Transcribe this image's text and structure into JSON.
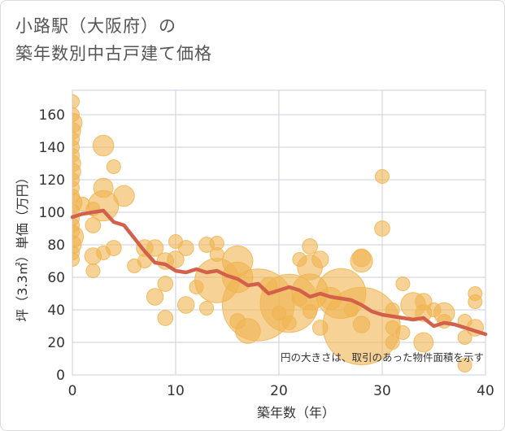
{
  "chart_data": {
    "type": "scatter",
    "title_lines": [
      "小路駅（大阪府）の",
      "築年数別中古戸建て価格"
    ],
    "xlabel": "築年数（年）",
    "ylabel": "坪（3.3㎡）単価（万円）",
    "xlim": [
      0,
      40
    ],
    "ylim": [
      0,
      175
    ],
    "xticks": [
      "0",
      "10",
      "20",
      "30",
      "40"
    ],
    "yticks": [
      "0",
      "20",
      "40",
      "60",
      "80",
      "100",
      "120",
      "140",
      "160"
    ],
    "grid": true,
    "annotation": "円の大きさは、取引のあった物件面積を示す",
    "colors": {
      "bubble": "#f0b450",
      "line": "#d2604a",
      "grid": "#c8d2dc"
    },
    "bubbles": [
      {
        "x": 0,
        "y": 168,
        "s": 1
      },
      {
        "x": 0,
        "y": 160,
        "s": 1
      },
      {
        "x": 0,
        "y": 155,
        "s": 1.4
      },
      {
        "x": 0,
        "y": 150,
        "s": 1.2
      },
      {
        "x": 0,
        "y": 145,
        "s": 1
      },
      {
        "x": 0,
        "y": 140,
        "s": 1
      },
      {
        "x": 0,
        "y": 135,
        "s": 1
      },
      {
        "x": 0,
        "y": 130,
        "s": 1.2
      },
      {
        "x": 0,
        "y": 125,
        "s": 1.2
      },
      {
        "x": 0,
        "y": 120,
        "s": 1
      },
      {
        "x": 0,
        "y": 115,
        "s": 1
      },
      {
        "x": 0,
        "y": 110,
        "s": 1
      },
      {
        "x": 0,
        "y": 106,
        "s": 1.4
      },
      {
        "x": 0,
        "y": 101,
        "s": 1
      },
      {
        "x": 0,
        "y": 96,
        "s": 1
      },
      {
        "x": 0,
        "y": 92,
        "s": 1
      },
      {
        "x": 0,
        "y": 88,
        "s": 1
      },
      {
        "x": 0,
        "y": 85,
        "s": 1.6
      },
      {
        "x": 0,
        "y": 80,
        "s": 1.3
      },
      {
        "x": 0,
        "y": 75,
        "s": 1
      },
      {
        "x": 0,
        "y": 71,
        "s": 1
      },
      {
        "x": 1,
        "y": 105,
        "s": 1
      },
      {
        "x": 2,
        "y": 102,
        "s": 1
      },
      {
        "x": 2,
        "y": 92,
        "s": 1.1
      },
      {
        "x": 2,
        "y": 73,
        "s": 1.2
      },
      {
        "x": 2,
        "y": 64,
        "s": 1
      },
      {
        "x": 3,
        "y": 141,
        "s": 1.5
      },
      {
        "x": 3,
        "y": 115,
        "s": 1.4
      },
      {
        "x": 3,
        "y": 104,
        "s": 2.2
      },
      {
        "x": 3,
        "y": 75,
        "s": 1
      },
      {
        "x": 4,
        "y": 128,
        "s": 1
      },
      {
        "x": 4,
        "y": 78,
        "s": 1.1
      },
      {
        "x": 5,
        "y": 110,
        "s": 1.5
      },
      {
        "x": 6,
        "y": 67,
        "s": 1
      },
      {
        "x": 7,
        "y": 78,
        "s": 1.2
      },
      {
        "x": 7,
        "y": 70,
        "s": 1
      },
      {
        "x": 8,
        "y": 78,
        "s": 1.2
      },
      {
        "x": 8,
        "y": 48,
        "s": 1.2
      },
      {
        "x": 9,
        "y": 70,
        "s": 1.2
      },
      {
        "x": 9,
        "y": 56,
        "s": 1.1
      },
      {
        "x": 9,
        "y": 35,
        "s": 1.1
      },
      {
        "x": 10,
        "y": 82,
        "s": 1
      },
      {
        "x": 10,
        "y": 71,
        "s": 1.2
      },
      {
        "x": 11,
        "y": 78,
        "s": 1.1
      },
      {
        "x": 11,
        "y": 43,
        "s": 1.2
      },
      {
        "x": 12,
        "y": 54,
        "s": 1
      },
      {
        "x": 13,
        "y": 80,
        "s": 1.1
      },
      {
        "x": 13,
        "y": 41,
        "s": 1
      },
      {
        "x": 14,
        "y": 81,
        "s": 1
      },
      {
        "x": 14,
        "y": 74,
        "s": 1
      },
      {
        "x": 14,
        "y": 58,
        "s": 3.2
      },
      {
        "x": 16,
        "y": 70,
        "s": 2.2
      },
      {
        "x": 16,
        "y": 60,
        "s": 2.2
      },
      {
        "x": 16,
        "y": 33,
        "s": 1.1
      },
      {
        "x": 17,
        "y": 27,
        "s": 1.8
      },
      {
        "x": 18,
        "y": 43,
        "s": 5.2
      },
      {
        "x": 19,
        "y": 55,
        "s": 1.2
      },
      {
        "x": 20,
        "y": 38,
        "s": 1
      },
      {
        "x": 21,
        "y": 44,
        "s": 4.2
      },
      {
        "x": 21,
        "y": 32,
        "s": 1
      },
      {
        "x": 22,
        "y": 71,
        "s": 1
      },
      {
        "x": 22,
        "y": 47,
        "s": 1.1
      },
      {
        "x": 23,
        "y": 79,
        "s": 1.1
      },
      {
        "x": 23,
        "y": 66,
        "s": 1.8
      },
      {
        "x": 23,
        "y": 51,
        "s": 2.6
      },
      {
        "x": 23,
        "y": 39,
        "s": 1
      },
      {
        "x": 24,
        "y": 71,
        "s": 1.2
      },
      {
        "x": 24,
        "y": 29,
        "s": 1.1
      },
      {
        "x": 25,
        "y": 47,
        "s": 1.6
      },
      {
        "x": 26,
        "y": 50,
        "s": 3.6
      },
      {
        "x": 27,
        "y": 40,
        "s": 1
      },
      {
        "x": 28,
        "y": 72,
        "s": 1.3
      },
      {
        "x": 28,
        "y": 70,
        "s": 1.6
      },
      {
        "x": 28,
        "y": 30,
        "s": 5.6
      },
      {
        "x": 28,
        "y": 31,
        "s": 1.2
      },
      {
        "x": 30,
        "y": 122,
        "s": 1
      },
      {
        "x": 30,
        "y": 90,
        "s": 1.1
      },
      {
        "x": 31,
        "y": 40,
        "s": 1
      },
      {
        "x": 31,
        "y": 29,
        "s": 1
      },
      {
        "x": 31,
        "y": 20,
        "s": 1
      },
      {
        "x": 32,
        "y": 56,
        "s": 1
      },
      {
        "x": 32,
        "y": 26,
        "s": 1
      },
      {
        "x": 33,
        "y": 43,
        "s": 1.8
      },
      {
        "x": 34,
        "y": 45,
        "s": 1.2
      },
      {
        "x": 34,
        "y": 38,
        "s": 1.2
      },
      {
        "x": 34,
        "y": 20,
        "s": 1.4
      },
      {
        "x": 35,
        "y": 40,
        "s": 1
      },
      {
        "x": 36,
        "y": 38,
        "s": 1.5
      },
      {
        "x": 36,
        "y": 33,
        "s": 1
      },
      {
        "x": 38,
        "y": 33,
        "s": 1
      },
      {
        "x": 38,
        "y": 23,
        "s": 1
      },
      {
        "x": 38,
        "y": 6,
        "s": 1
      },
      {
        "x": 39,
        "y": 50,
        "s": 1
      },
      {
        "x": 39,
        "y": 45,
        "s": 1
      },
      {
        "x": 39,
        "y": 29,
        "s": 1.2
      }
    ],
    "trend": {
      "x": [
        0,
        1,
        2,
        3,
        4,
        5,
        6,
        7,
        8,
        9,
        10,
        11,
        12,
        13,
        14,
        15,
        16,
        17,
        18,
        19,
        20,
        21,
        22,
        23,
        24,
        25,
        26,
        27,
        28,
        29,
        30,
        31,
        32,
        33,
        34,
        35,
        36,
        37,
        38,
        39,
        40
      ],
      "y": [
        97,
        99,
        100,
        101,
        94,
        92,
        84,
        76,
        69,
        68,
        64,
        63,
        65,
        63,
        64,
        61,
        59,
        55,
        56,
        50,
        52,
        54,
        52,
        48,
        50,
        48,
        47,
        46,
        43,
        39,
        37,
        36,
        35,
        34,
        35,
        30,
        32,
        31,
        29,
        27,
        25
      ]
    }
  }
}
